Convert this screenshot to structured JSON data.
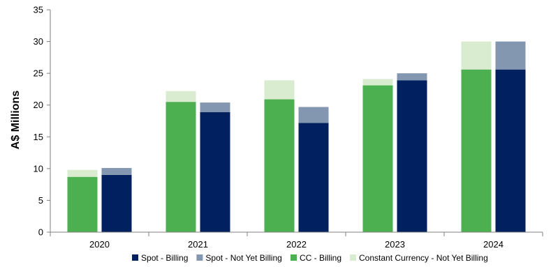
{
  "chart_data": {
    "type": "bar",
    "stacked_groups": true,
    "ylabel": "A$ Millions",
    "xlabel": "",
    "ylim": [
      0,
      35
    ],
    "yticks": [
      0,
      5,
      10,
      15,
      20,
      25,
      30,
      35
    ],
    "grid": false,
    "legend_position": "bottom-right",
    "categories": [
      "2020",
      "2021",
      "2022",
      "2023",
      "2024"
    ],
    "groups": [
      {
        "stack": "constant-currency",
        "series": [
          {
            "name": "CC - Billing",
            "color": "#4caf50",
            "values": [
              8.7,
              20.5,
              20.9,
              23.1,
              25.6
            ]
          },
          {
            "name": "Constant Currency - Not Yet Billing",
            "color": "#d9ecd0",
            "values": [
              1.1,
              1.7,
              3.0,
              1.0,
              4.4
            ]
          }
        ]
      },
      {
        "stack": "spot",
        "series": [
          {
            "name": "Spot - Billing",
            "color": "#002060",
            "values": [
              9.0,
              18.9,
              17.2,
              23.9,
              25.6
            ]
          },
          {
            "name": "Spot - Not Yet Billing",
            "color": "#8497b0",
            "values": [
              1.1,
              1.5,
              2.5,
              1.1,
              4.4
            ]
          }
        ]
      }
    ],
    "legend": [
      {
        "name": "Spot - Billing",
        "color": "#002060"
      },
      {
        "name": "Spot - Not Yet Billing",
        "color": "#8497b0"
      },
      {
        "name": "CC - Billing",
        "color": "#4caf50"
      },
      {
        "name": "Constant Currency - Not Yet Billing",
        "color": "#d9ecd0"
      }
    ]
  }
}
